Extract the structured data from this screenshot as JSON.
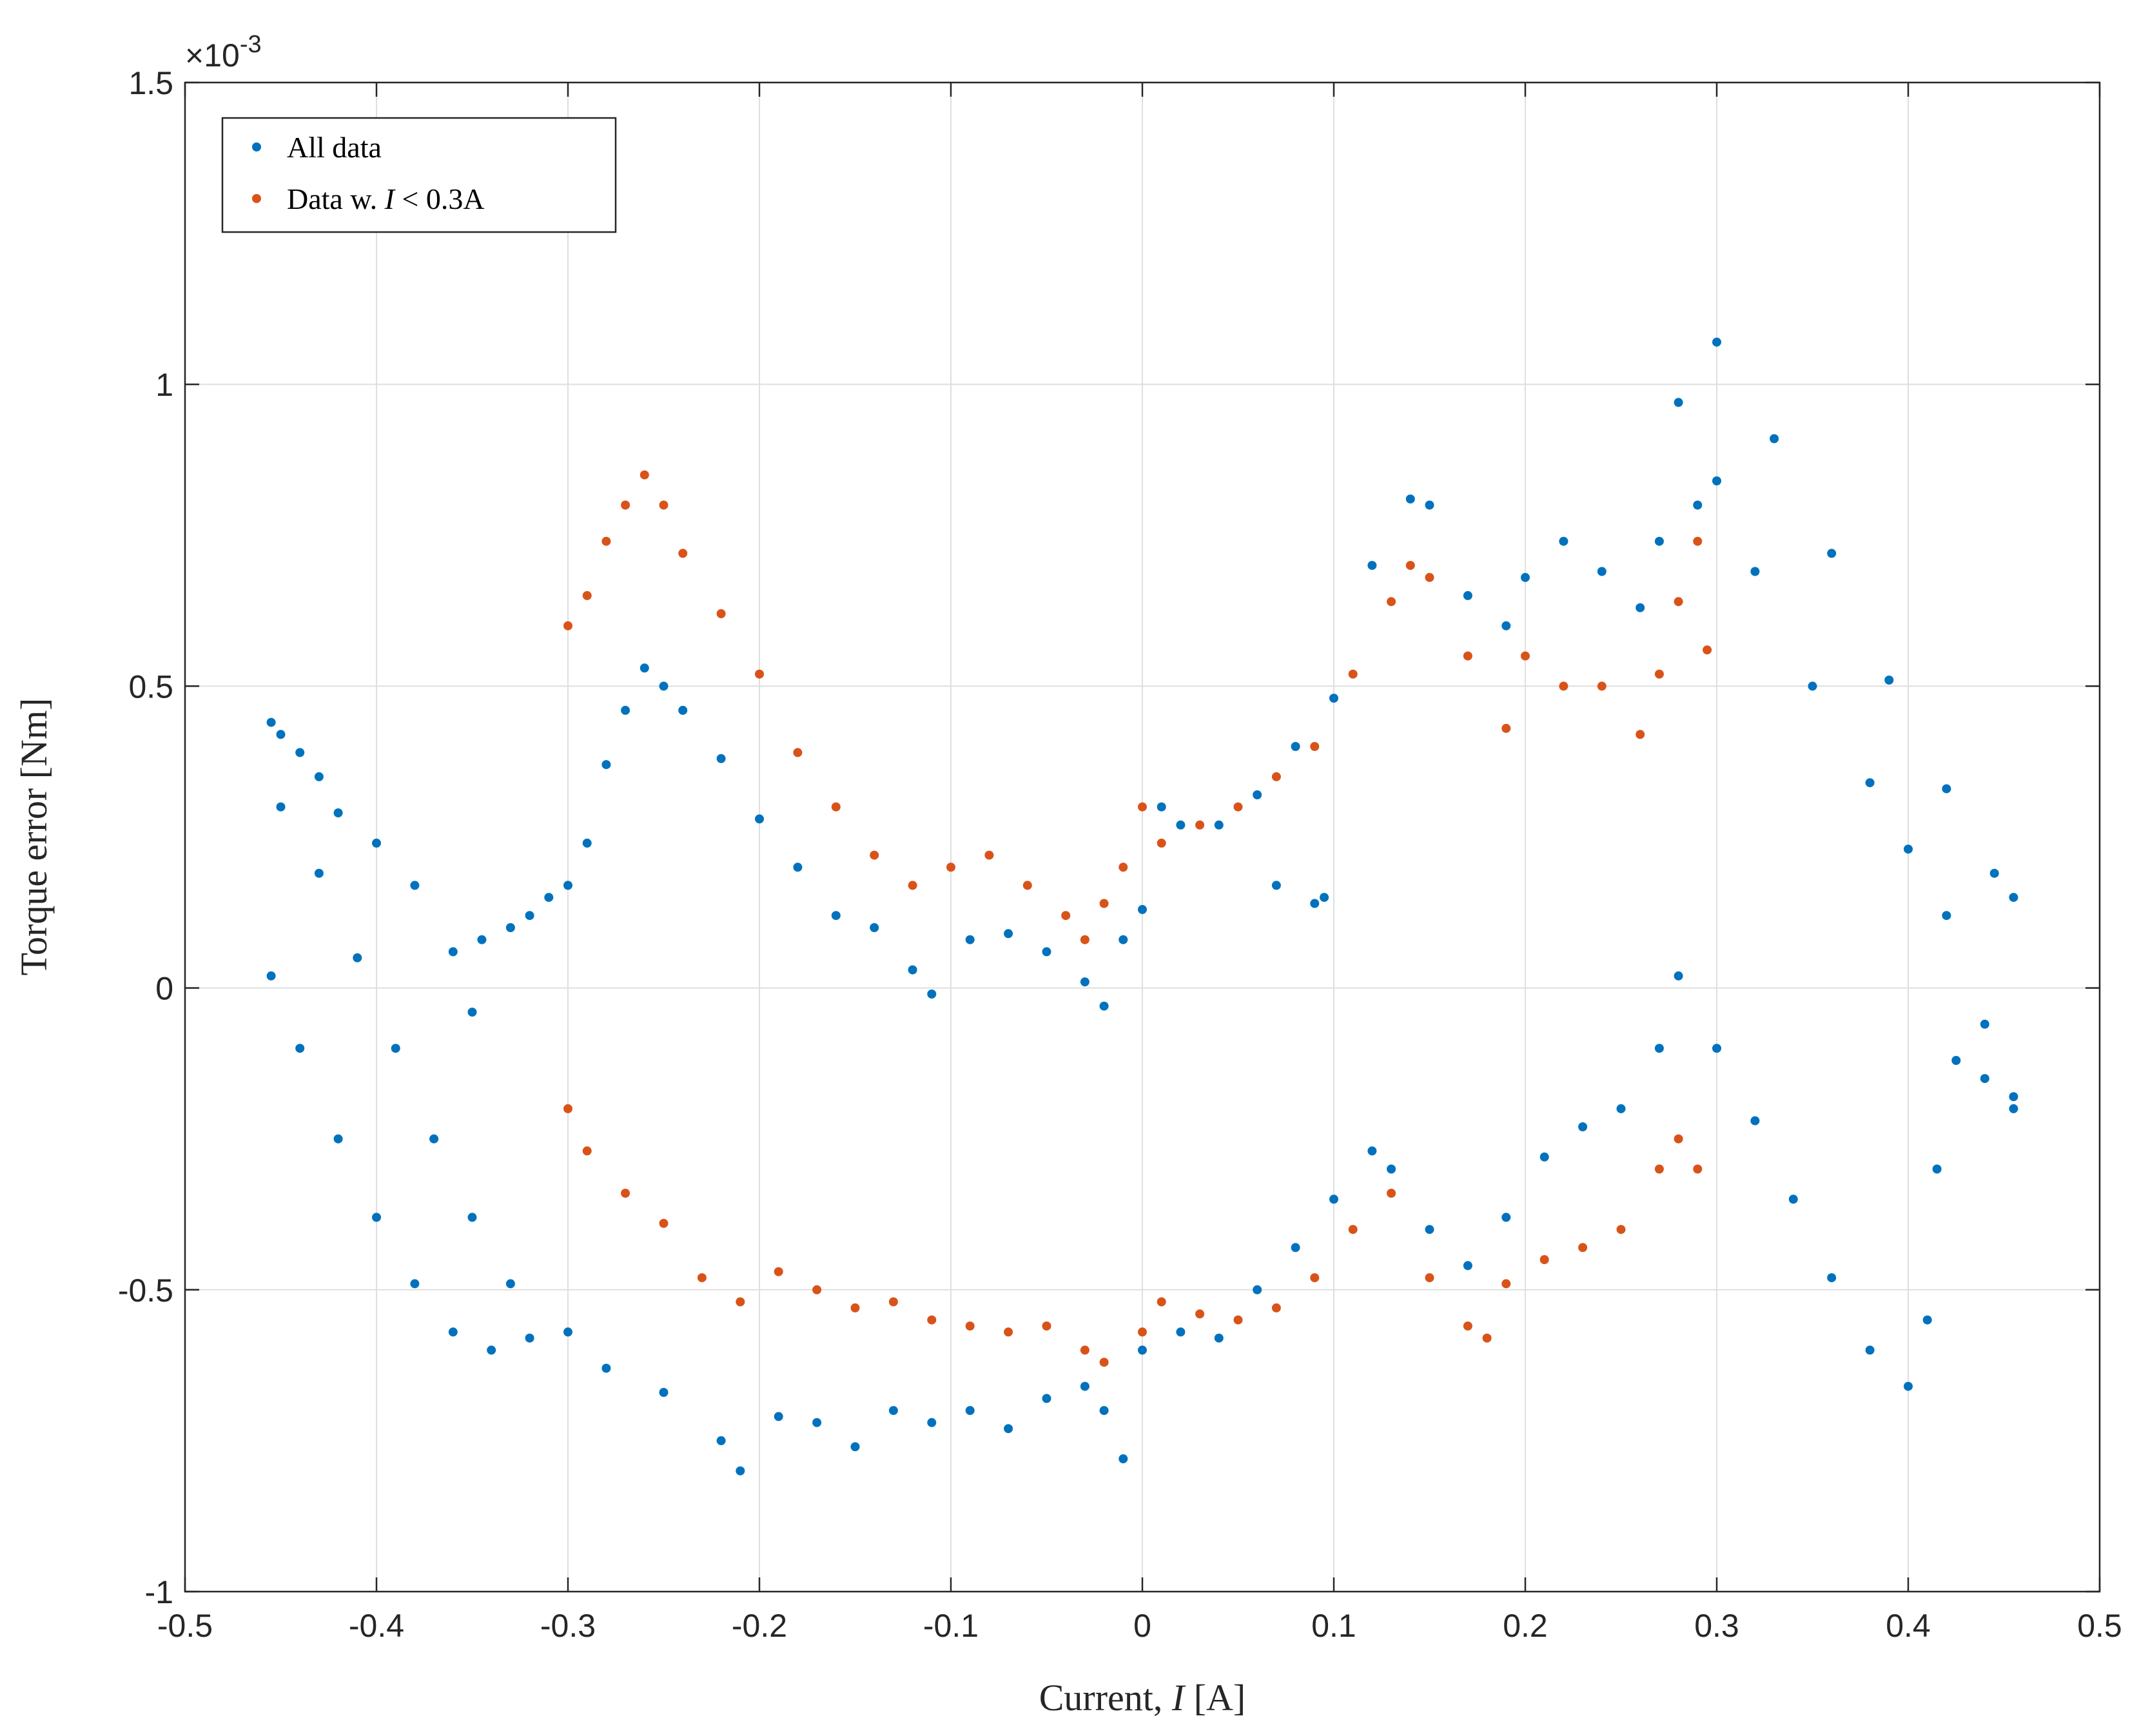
{
  "chart_data": {
    "type": "scatter",
    "xlabel_prefix": "Current, ",
    "xlabel_var": "I",
    "xlabel_suffix": " [A]",
    "ylabel": "Torque error [Nm]",
    "y_exponent_label": "×10",
    "y_exponent_power": "-3",
    "xlim": [
      -0.5,
      0.5
    ],
    "ylim": [
      -1,
      1.5
    ],
    "xticks": [
      -0.5,
      -0.4,
      -0.3,
      -0.2,
      -0.1,
      0,
      0.1,
      0.2,
      0.3,
      0.4,
      0.5
    ],
    "xtick_labels": [
      "-0.5",
      "-0.4",
      "-0.3",
      "-0.2",
      "-0.1",
      "0",
      "0.1",
      "0.2",
      "0.3",
      "0.4",
      "0.5"
    ],
    "yticks": [
      -1,
      -0.5,
      0,
      0.5,
      1,
      1.5
    ],
    "ytick_labels": [
      "-1",
      "-0.5",
      "0",
      "0.5",
      "1",
      "1.5"
    ],
    "grid": true,
    "legend_position": "top-left",
    "legend": [
      {
        "label": "All data",
        "color": "#0072BD"
      },
      {
        "label_prefix": "Data w. ",
        "label_var": "I",
        "label_suffix": " < 0.3A",
        "color": "#D95319"
      }
    ],
    "series": [
      {
        "name": "All data",
        "color": "#0072BD",
        "points": [
          [
            -0.455,
            0.44
          ],
          [
            -0.45,
            0.42
          ],
          [
            -0.44,
            0.39
          ],
          [
            -0.43,
            0.35
          ],
          [
            -0.42,
            0.29
          ],
          [
            -0.4,
            0.24
          ],
          [
            -0.38,
            0.17
          ],
          [
            -0.36,
            0.06
          ],
          [
            -0.35,
            -0.04
          ],
          [
            -0.345,
            0.08
          ],
          [
            -0.33,
            0.1
          ],
          [
            -0.32,
            0.12
          ],
          [
            -0.31,
            0.15
          ],
          [
            -0.3,
            0.17
          ],
          [
            -0.29,
            0.24
          ],
          [
            -0.28,
            0.37
          ],
          [
            -0.27,
            0.46
          ],
          [
            -0.26,
            0.53
          ],
          [
            -0.25,
            0.5
          ],
          [
            -0.24,
            0.46
          ],
          [
            -0.22,
            0.38
          ],
          [
            -0.2,
            0.28
          ],
          [
            -0.18,
            0.2
          ],
          [
            -0.16,
            0.12
          ],
          [
            -0.14,
            0.1
          ],
          [
            -0.12,
            0.03
          ],
          [
            -0.11,
            -0.01
          ],
          [
            -0.09,
            0.08
          ],
          [
            -0.07,
            0.09
          ],
          [
            -0.05,
            0.06
          ],
          [
            -0.03,
            0.01
          ],
          [
            -0.02,
            -0.03
          ],
          [
            -0.01,
            0.08
          ],
          [
            0.0,
            0.13
          ],
          [
            0.01,
            0.3
          ],
          [
            0.02,
            0.27
          ],
          [
            0.04,
            0.27
          ],
          [
            0.06,
            0.32
          ],
          [
            0.08,
            0.4
          ],
          [
            0.1,
            0.48
          ],
          [
            0.12,
            0.7
          ],
          [
            0.14,
            0.81
          ],
          [
            0.15,
            0.8
          ],
          [
            0.17,
            0.65
          ],
          [
            0.19,
            0.6
          ],
          [
            0.2,
            0.68
          ],
          [
            0.22,
            0.74
          ],
          [
            0.24,
            0.69
          ],
          [
            0.26,
            0.63
          ],
          [
            0.27,
            0.74
          ],
          [
            0.28,
            0.97
          ],
          [
            0.29,
            0.8
          ],
          [
            0.3,
            0.84
          ],
          [
            0.32,
            0.69
          ],
          [
            0.35,
            0.5
          ],
          [
            0.38,
            0.34
          ],
          [
            0.4,
            0.23
          ],
          [
            0.42,
            0.12
          ],
          [
            0.44,
            -0.06
          ],
          [
            0.455,
            -0.18
          ],
          [
            0.3,
            1.07
          ],
          [
            0.33,
            0.91
          ],
          [
            0.36,
            0.72
          ],
          [
            0.39,
            0.51
          ],
          [
            0.42,
            0.33
          ],
          [
            0.445,
            0.19
          ],
          [
            0.455,
            0.15
          ],
          [
            0.07,
            0.17
          ],
          [
            0.09,
            0.14
          ],
          [
            0.095,
            0.15
          ],
          [
            -0.455,
            0.02
          ],
          [
            -0.44,
            -0.1
          ],
          [
            -0.42,
            -0.25
          ],
          [
            -0.4,
            -0.38
          ],
          [
            -0.38,
            -0.49
          ],
          [
            -0.36,
            -0.57
          ],
          [
            -0.34,
            -0.6
          ],
          [
            -0.32,
            -0.58
          ],
          [
            -0.45,
            0.3
          ],
          [
            -0.43,
            0.19
          ],
          [
            -0.41,
            0.05
          ],
          [
            -0.39,
            -0.1
          ],
          [
            -0.37,
            -0.25
          ],
          [
            -0.35,
            -0.38
          ],
          [
            -0.33,
            -0.49
          ],
          [
            -0.3,
            -0.57
          ],
          [
            -0.28,
            -0.63
          ],
          [
            -0.25,
            -0.67
          ],
          [
            -0.22,
            -0.75
          ],
          [
            -0.21,
            -0.8
          ],
          [
            -0.19,
            -0.71
          ],
          [
            -0.17,
            -0.72
          ],
          [
            -0.15,
            -0.76
          ],
          [
            -0.13,
            -0.7
          ],
          [
            -0.11,
            -0.72
          ],
          [
            -0.09,
            -0.7
          ],
          [
            -0.07,
            -0.73
          ],
          [
            -0.05,
            -0.68
          ],
          [
            -0.03,
            -0.66
          ],
          [
            -0.02,
            -0.7
          ],
          [
            -0.01,
            -0.78
          ],
          [
            0.0,
            -0.6
          ],
          [
            0.02,
            -0.57
          ],
          [
            0.04,
            -0.58
          ],
          [
            0.06,
            -0.5
          ],
          [
            0.08,
            -0.43
          ],
          [
            0.1,
            -0.35
          ],
          [
            0.12,
            -0.27
          ],
          [
            0.13,
            -0.3
          ],
          [
            0.15,
            -0.4
          ],
          [
            0.17,
            -0.46
          ],
          [
            0.19,
            -0.38
          ],
          [
            0.21,
            -0.28
          ],
          [
            0.23,
            -0.23
          ],
          [
            0.25,
            -0.2
          ],
          [
            0.27,
            -0.1
          ],
          [
            0.28,
            0.02
          ],
          [
            0.3,
            -0.1
          ],
          [
            0.32,
            -0.22
          ],
          [
            0.34,
            -0.35
          ],
          [
            0.36,
            -0.48
          ],
          [
            0.38,
            -0.6
          ],
          [
            0.4,
            -0.66
          ],
          [
            0.41,
            -0.55
          ],
          [
            0.415,
            -0.3
          ],
          [
            0.425,
            -0.12
          ],
          [
            0.44,
            -0.15
          ],
          [
            0.455,
            -0.2
          ]
        ]
      },
      {
        "name": "Data w. I < 0.3A",
        "color": "#D95319",
        "points": [
          [
            -0.3,
            0.6
          ],
          [
            -0.29,
            0.65
          ],
          [
            -0.28,
            0.74
          ],
          [
            -0.27,
            0.8
          ],
          [
            -0.26,
            0.85
          ],
          [
            -0.25,
            0.8
          ],
          [
            -0.24,
            0.72
          ],
          [
            -0.22,
            0.62
          ],
          [
            -0.2,
            0.52
          ],
          [
            -0.18,
            0.39
          ],
          [
            -0.16,
            0.3
          ],
          [
            -0.14,
            0.22
          ],
          [
            -0.12,
            0.17
          ],
          [
            -0.1,
            0.2
          ],
          [
            -0.08,
            0.22
          ],
          [
            -0.06,
            0.17
          ],
          [
            -0.04,
            0.12
          ],
          [
            -0.03,
            0.08
          ],
          [
            -0.02,
            0.14
          ],
          [
            -0.01,
            0.2
          ],
          [
            0.0,
            0.3
          ],
          [
            0.01,
            0.24
          ],
          [
            0.03,
            0.27
          ],
          [
            0.05,
            0.3
          ],
          [
            0.07,
            0.35
          ],
          [
            0.09,
            0.4
          ],
          [
            0.11,
            0.52
          ],
          [
            0.13,
            0.64
          ],
          [
            0.14,
            0.7
          ],
          [
            0.15,
            0.68
          ],
          [
            0.17,
            0.55
          ],
          [
            0.19,
            0.43
          ],
          [
            0.2,
            0.55
          ],
          [
            0.22,
            0.5
          ],
          [
            0.24,
            0.5
          ],
          [
            0.26,
            0.42
          ],
          [
            0.27,
            0.52
          ],
          [
            0.28,
            0.64
          ],
          [
            0.29,
            0.74
          ],
          [
            0.295,
            0.56
          ],
          [
            -0.3,
            -0.2
          ],
          [
            -0.29,
            -0.27
          ],
          [
            -0.27,
            -0.34
          ],
          [
            -0.25,
            -0.39
          ],
          [
            -0.23,
            -0.48
          ],
          [
            -0.21,
            -0.52
          ],
          [
            -0.19,
            -0.47
          ],
          [
            -0.17,
            -0.5
          ],
          [
            -0.15,
            -0.53
          ],
          [
            -0.13,
            -0.52
          ],
          [
            -0.11,
            -0.55
          ],
          [
            -0.09,
            -0.56
          ],
          [
            -0.07,
            -0.57
          ],
          [
            -0.05,
            -0.56
          ],
          [
            -0.03,
            -0.6
          ],
          [
            -0.02,
            -0.62
          ],
          [
            0.0,
            -0.57
          ],
          [
            0.01,
            -0.52
          ],
          [
            0.03,
            -0.54
          ],
          [
            0.05,
            -0.55
          ],
          [
            0.07,
            -0.53
          ],
          [
            0.09,
            -0.48
          ],
          [
            0.11,
            -0.4
          ],
          [
            0.13,
            -0.34
          ],
          [
            0.15,
            -0.48
          ],
          [
            0.17,
            -0.56
          ],
          [
            0.18,
            -0.58
          ],
          [
            0.19,
            -0.49
          ],
          [
            0.21,
            -0.45
          ],
          [
            0.23,
            -0.43
          ],
          [
            0.25,
            -0.4
          ],
          [
            0.27,
            -0.3
          ],
          [
            0.28,
            -0.25
          ],
          [
            0.29,
            -0.3
          ]
        ]
      }
    ]
  }
}
